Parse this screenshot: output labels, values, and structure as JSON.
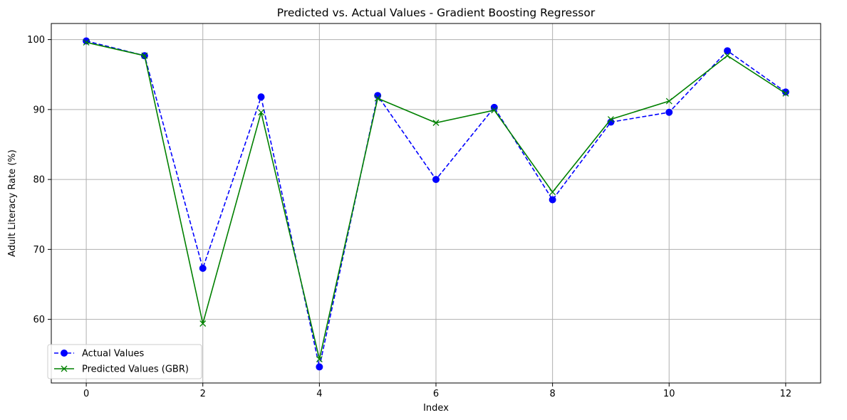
{
  "chart_data": {
    "type": "line",
    "title": "Predicted vs. Actual Values - Gradient Boosting Regressor",
    "xlabel": "Index",
    "ylabel": "Adult Literacy Rate (%)",
    "x": [
      0,
      1,
      2,
      3,
      4,
      5,
      6,
      7,
      8,
      9,
      10,
      11,
      12
    ],
    "xlim": [
      -0.6,
      12.6
    ],
    "ylim": [
      50.9,
      102.3
    ],
    "xticks": [
      0,
      2,
      4,
      6,
      8,
      10,
      12
    ],
    "yticks": [
      60,
      70,
      80,
      90,
      100
    ],
    "grid": true,
    "legend_position": "lower-left",
    "series": [
      {
        "name": "Actual Values",
        "color": "#0000ff",
        "line_style": "dashed",
        "marker": "circle",
        "values": [
          99.8,
          97.7,
          67.3,
          91.8,
          53.2,
          92.0,
          80.0,
          90.3,
          77.1,
          88.2,
          89.6,
          98.4,
          92.5
        ]
      },
      {
        "name": "Predicted Values (GBR)",
        "color": "#008000",
        "line_style": "solid",
        "marker": "x",
        "values": [
          99.6,
          97.7,
          59.4,
          89.6,
          54.3,
          91.6,
          88.1,
          89.9,
          78.2,
          88.6,
          91.2,
          97.7,
          92.3
        ]
      }
    ]
  }
}
